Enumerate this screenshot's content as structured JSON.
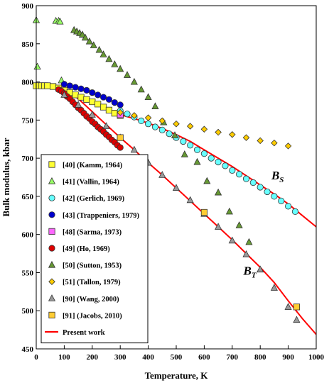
{
  "chart_data": {
    "type": "scatter",
    "xlabel": "Temperature, K",
    "ylabel": "Bulk modulus, kbar",
    "xlim": [
      0,
      1000
    ],
    "ylim": [
      450,
      900
    ],
    "xticks": [
      "0",
      "100",
      "200",
      "300",
      "400",
      "500",
      "600",
      "700",
      "800",
      "900",
      "1000"
    ],
    "yticks": [
      "450",
      "500",
      "550",
      "600",
      "650",
      "700",
      "750",
      "800",
      "850",
      "900"
    ],
    "grid": false,
    "legend_position": "left",
    "curve_labels": [
      {
        "main": "B",
        "sub": "S",
        "x": 840,
        "y": 672
      },
      {
        "main": "B",
        "sub": "T",
        "x": 740,
        "y": 547
      }
    ],
    "series": [
      {
        "name": "[40] (Kamm, 1964)",
        "marker": "square",
        "color": "#ffff33",
        "points": [
          [
            0,
            795
          ],
          [
            10,
            795
          ],
          [
            20,
            795
          ],
          [
            30,
            795
          ],
          [
            40,
            795
          ],
          [
            60,
            794
          ],
          [
            80,
            792
          ],
          [
            100,
            789
          ],
          [
            120,
            786
          ],
          [
            140,
            783
          ],
          [
            160,
            780
          ],
          [
            180,
            777
          ],
          [
            200,
            774
          ],
          [
            220,
            771
          ],
          [
            240,
            767
          ],
          [
            260,
            763
          ],
          [
            280,
            759
          ],
          [
            300,
            756
          ]
        ]
      },
      {
        "name": "[41] (Vallin, 1964)",
        "marker": "triangle",
        "color": "#99ff66",
        "points": [
          [
            0,
            881
          ],
          [
            4,
            820
          ],
          [
            70,
            880
          ],
          [
            80,
            880
          ],
          [
            85,
            879
          ],
          [
            90,
            802
          ]
        ]
      },
      {
        "name": "[42] (Gerlich, 1969)",
        "marker": "circle",
        "color": "#66ffff",
        "points": [
          [
            300,
            762
          ],
          [
            325,
            758
          ],
          [
            350,
            754
          ],
          [
            375,
            749
          ],
          [
            400,
            745
          ],
          [
            425,
            741
          ],
          [
            450,
            737
          ],
          [
            475,
            732
          ],
          [
            500,
            727
          ],
          [
            525,
            722
          ],
          [
            550,
            717
          ],
          [
            575,
            711
          ],
          [
            600,
            706
          ],
          [
            625,
            700
          ],
          [
            650,
            695
          ],
          [
            675,
            690
          ],
          [
            700,
            684
          ],
          [
            725,
            679
          ],
          [
            750,
            673
          ],
          [
            775,
            668
          ],
          [
            800,
            662
          ],
          [
            825,
            656
          ],
          [
            850,
            650
          ],
          [
            875,
            644
          ],
          [
            900,
            637
          ],
          [
            925,
            630
          ]
        ]
      },
      {
        "name": "[43] (Trappeniers, 1979)",
        "marker": "circle",
        "color": "#0000cc",
        "points": [
          [
            100,
            797
          ],
          [
            120,
            795
          ],
          [
            140,
            793
          ],
          [
            160,
            791
          ],
          [
            180,
            789
          ],
          [
            200,
            786
          ],
          [
            220,
            783
          ],
          [
            240,
            780
          ],
          [
            260,
            777
          ],
          [
            280,
            773
          ],
          [
            300,
            770
          ]
        ]
      },
      {
        "name": "[48] (Sarma, 1973)",
        "marker": "square",
        "color": "#ff66ff",
        "points": [
          [
            300,
            757
          ]
        ]
      },
      {
        "name": "[49] (Ho, 1969)",
        "marker": "circle",
        "color": "#dd0000",
        "points": [
          [
            80,
            790
          ],
          [
            90,
            788
          ],
          [
            100,
            785
          ],
          [
            110,
            781
          ],
          [
            120,
            778
          ],
          [
            130,
            774
          ],
          [
            140,
            770
          ],
          [
            150,
            766
          ],
          [
            160,
            763
          ],
          [
            170,
            759
          ],
          [
            180,
            755
          ],
          [
            190,
            752
          ],
          [
            200,
            748
          ],
          [
            210,
            745
          ],
          [
            220,
            741
          ],
          [
            230,
            738
          ],
          [
            240,
            735
          ],
          [
            250,
            731
          ],
          [
            260,
            728
          ],
          [
            270,
            724
          ],
          [
            280,
            721
          ],
          [
            290,
            717
          ],
          [
            300,
            714
          ]
        ]
      },
      {
        "name": "[50] (Sutton, 1953)",
        "marker": "triangle",
        "color": "#669933",
        "points": [
          [
            135,
            868
          ],
          [
            145,
            866
          ],
          [
            155,
            864
          ],
          [
            165,
            862
          ],
          [
            175,
            858
          ],
          [
            190,
            853
          ],
          [
            205,
            848
          ],
          [
            225,
            842
          ],
          [
            240,
            836
          ],
          [
            260,
            830
          ],
          [
            280,
            823
          ],
          [
            300,
            817
          ],
          [
            325,
            809
          ],
          [
            350,
            800
          ],
          [
            375,
            790
          ],
          [
            400,
            780
          ],
          [
            425,
            768
          ],
          [
            455,
            747
          ],
          [
            495,
            730
          ],
          [
            530,
            705
          ],
          [
            575,
            695
          ],
          [
            610,
            670
          ],
          [
            650,
            655
          ],
          [
            690,
            630
          ],
          [
            725,
            612
          ],
          [
            760,
            590
          ]
        ]
      },
      {
        "name": "[51] (Tallon, 1979)",
        "marker": "diamond",
        "color": "#ffcc00",
        "points": [
          [
            300,
            760
          ],
          [
            350,
            756
          ],
          [
            400,
            753
          ],
          [
            450,
            749
          ],
          [
            500,
            745
          ],
          [
            550,
            742
          ],
          [
            600,
            738
          ],
          [
            650,
            734
          ],
          [
            700,
            731
          ],
          [
            750,
            727
          ],
          [
            800,
            723
          ],
          [
            850,
            720
          ],
          [
            900,
            716
          ]
        ]
      },
      {
        "name": "[90] (Wang, 2000)",
        "marker": "triangle",
        "color": "#999999",
        "points": [
          [
            100,
            783
          ],
          [
            150,
            770
          ],
          [
            200,
            757
          ],
          [
            250,
            742
          ],
          [
            300,
            727
          ],
          [
            350,
            711
          ],
          [
            400,
            694
          ],
          [
            450,
            678
          ],
          [
            500,
            661
          ],
          [
            550,
            645
          ],
          [
            600,
            627
          ],
          [
            650,
            610
          ],
          [
            700,
            592
          ],
          [
            750,
            574
          ],
          [
            800,
            554
          ],
          [
            850,
            530
          ],
          [
            900,
            505
          ],
          [
            930,
            488
          ]
        ]
      },
      {
        "name": "[91] (Jacobs, 2010)",
        "marker": "square",
        "color": "#ffcc33",
        "points": [
          [
            300,
            727
          ],
          [
            600,
            629
          ],
          [
            930,
            505
          ]
        ]
      }
    ],
    "lines": [
      {
        "name": "Present work",
        "color": "#ff0000",
        "points": [
          [
            0,
            796
          ],
          [
            50,
            795
          ],
          [
            100,
            790
          ],
          [
            150,
            778
          ],
          [
            200,
            761
          ],
          [
            250,
            744
          ],
          [
            300,
            727
          ],
          [
            350,
            711
          ],
          [
            400,
            694
          ],
          [
            450,
            678
          ],
          [
            500,
            661
          ],
          [
            550,
            644
          ],
          [
            600,
            627
          ],
          [
            650,
            610
          ],
          [
            700,
            593
          ],
          [
            750,
            575
          ],
          [
            800,
            557
          ],
          [
            850,
            537
          ],
          [
            900,
            513
          ],
          [
            950,
            490
          ],
          [
            1000,
            469
          ]
        ]
      },
      {
        "name": "",
        "color": "#ff0000",
        "points": [
          [
            300,
            757
          ],
          [
            350,
            752
          ],
          [
            400,
            746
          ],
          [
            450,
            739
          ],
          [
            500,
            731
          ],
          [
            550,
            722
          ],
          [
            600,
            711
          ],
          [
            650,
            700
          ],
          [
            700,
            689
          ],
          [
            750,
            677
          ],
          [
            800,
            665
          ],
          [
            850,
            653
          ],
          [
            900,
            640
          ],
          [
            950,
            625
          ],
          [
            1000,
            610
          ]
        ]
      }
    ]
  }
}
